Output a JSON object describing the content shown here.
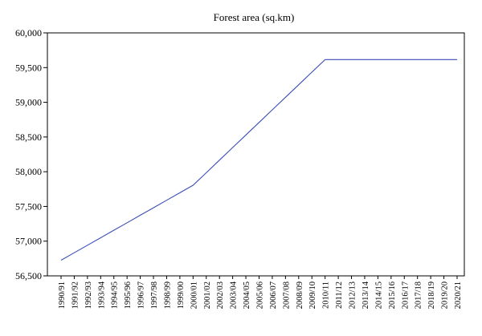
{
  "chart_data": {
    "type": "line",
    "title": "Forest area (sq.km)",
    "xlabel": "",
    "ylabel": "",
    "ylim": [
      56500,
      60000
    ],
    "yticks": [
      56500,
      57000,
      57500,
      58000,
      58500,
      59000,
      59500,
      60000
    ],
    "ytick_labels": [
      "56,500",
      "57,000",
      "57,500",
      "58,000",
      "58,500",
      "59,000",
      "59,500",
      "60,000"
    ],
    "grid": false,
    "legend": "none",
    "categories": [
      "1990/91",
      "1991/92",
      "1992/93",
      "1993/94",
      "1994/95",
      "1995/96",
      "1996/97",
      "1997/98",
      "1998/99",
      "1999/00",
      "2000/01",
      "2001/02",
      "2002/03",
      "2003/04",
      "2004/05",
      "2005/06",
      "2006/07",
      "2007/08",
      "2008/09",
      "2009/10",
      "2010/11",
      "2011/12",
      "2012/13",
      "2013/14",
      "2014/15",
      "2015/16",
      "2016/17",
      "2017/18",
      "2018/19",
      "2019/20",
      "2020/21"
    ],
    "series": [
      {
        "color": "#3b4fb8",
        "values": [
          56725,
          56833,
          56941,
          57049,
          57157,
          57265,
          57373,
          57481,
          57589,
          57697,
          57805,
          57986,
          58167,
          58348,
          58529,
          58710,
          58891,
          59072,
          59253,
          59434,
          59615,
          59615,
          59615,
          59615,
          59615,
          59615,
          59615,
          59615,
          59615,
          59615,
          59615
        ]
      }
    ]
  }
}
